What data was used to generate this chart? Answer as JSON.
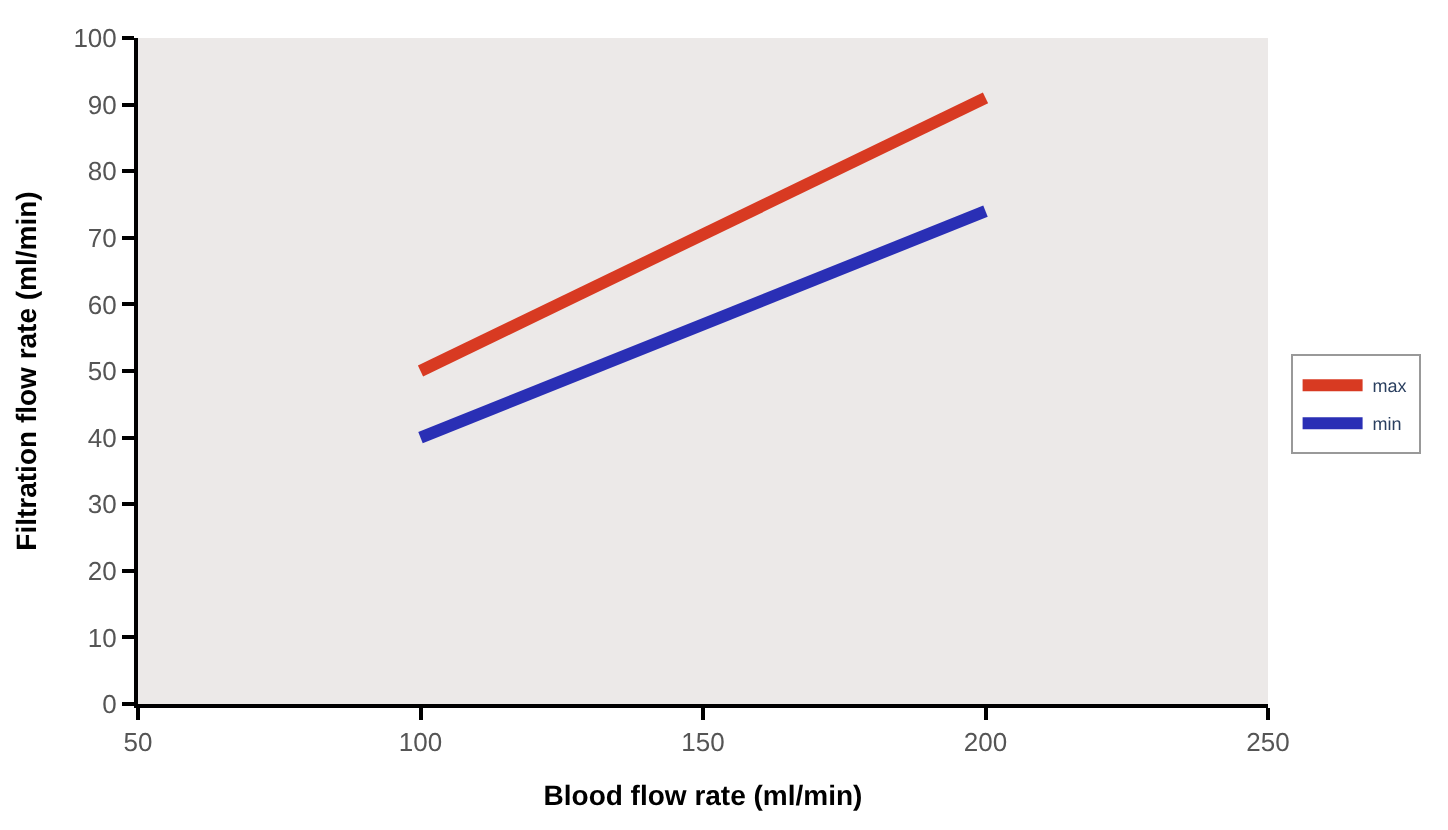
{
  "chart_data": {
    "type": "line",
    "xlabel": "Blood flow rate (ml/min)",
    "ylabel": "Filtration flow rate (ml/min)",
    "series": [
      {
        "name": "max",
        "color": "#d83a22",
        "values": [
          50,
          91
        ]
      },
      {
        "name": "min",
        "color": "#2a2fb5",
        "values": [
          40,
          74
        ]
      }
    ],
    "x": [
      100,
      200
    ],
    "xlim": [
      50,
      250
    ],
    "xticks": [
      50,
      100,
      150,
      200,
      250
    ],
    "ylim": [
      0,
      100
    ],
    "yticks": [
      0,
      10,
      20,
      30,
      40,
      50,
      60,
      70,
      80,
      90,
      100
    ],
    "grid": false,
    "legend": "right",
    "marker": "none",
    "line_style": "solid"
  }
}
